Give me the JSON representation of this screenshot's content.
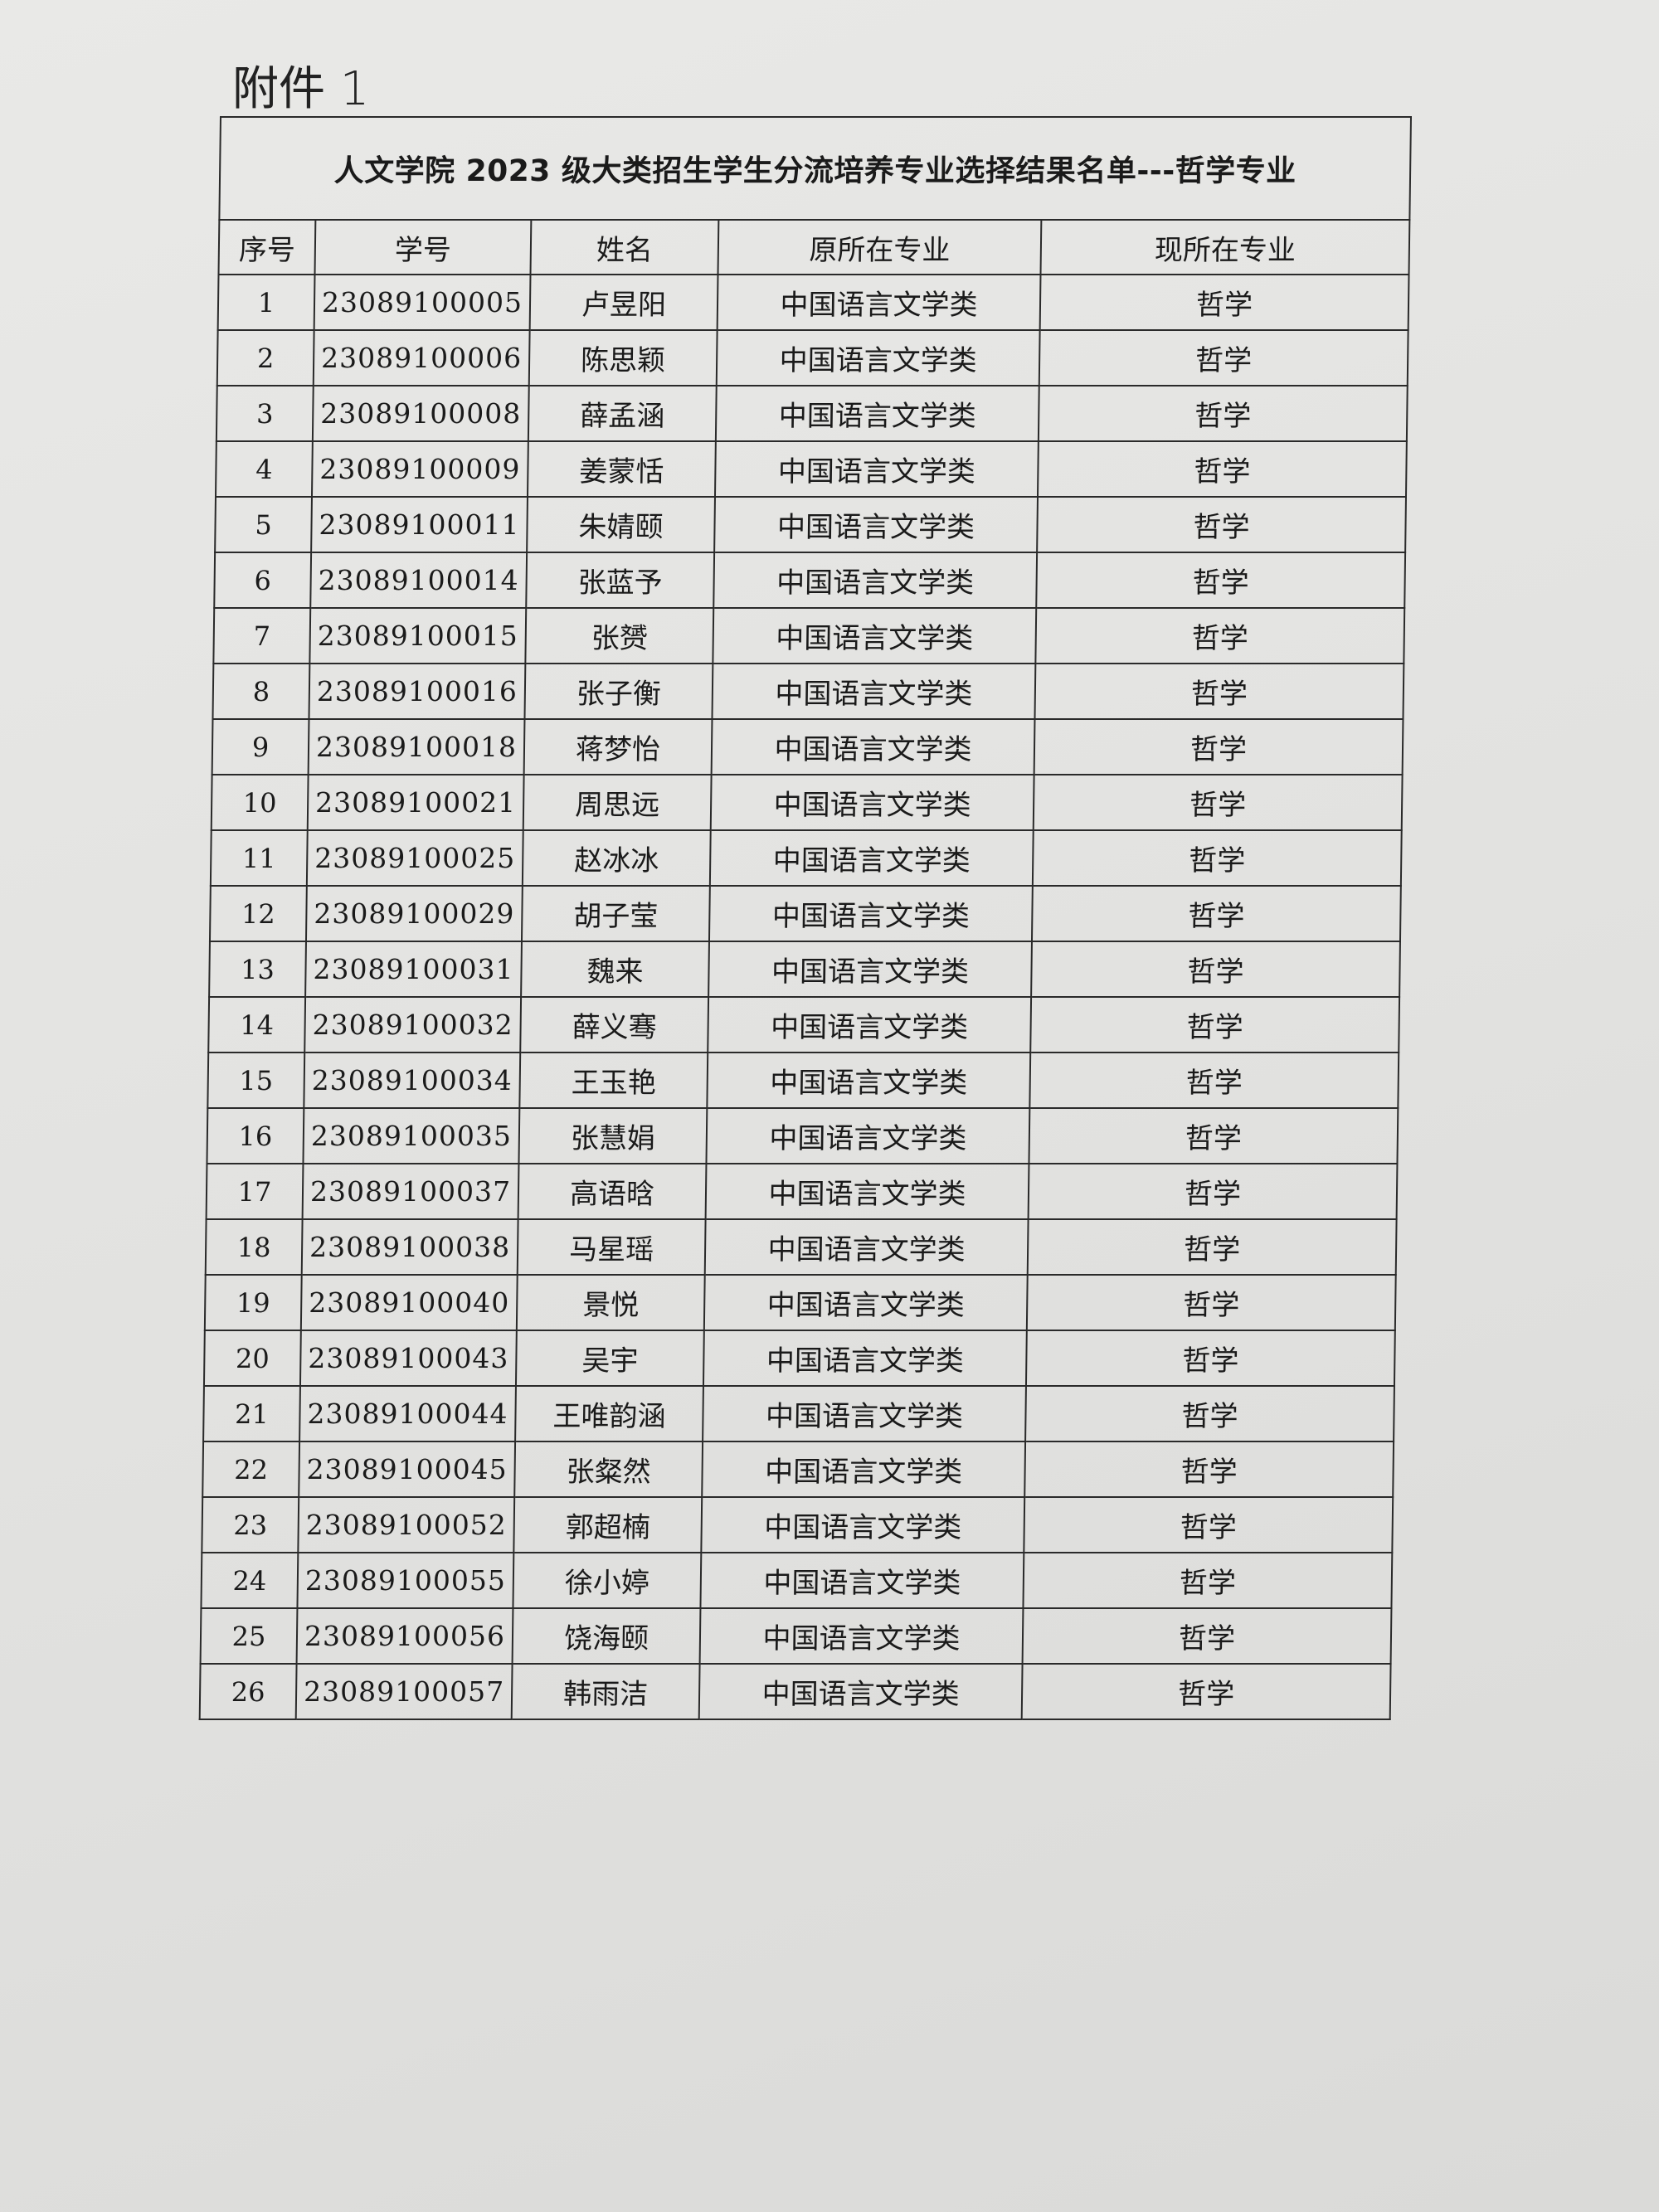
{
  "attachment_label": "附件 1",
  "table": {
    "title": "人文学院 2023 级大类招生学生分流培养专业选择结果名单---哲学专业",
    "headers": [
      "序号",
      "学号",
      "姓名",
      "原所在专业",
      "现所在专业"
    ],
    "rows": [
      [
        "1",
        "23089100005",
        "卢昱阳",
        "中国语言文学类",
        "哲学"
      ],
      [
        "2",
        "23089100006",
        "陈思颖",
        "中国语言文学类",
        "哲学"
      ],
      [
        "3",
        "23089100008",
        "薛孟涵",
        "中国语言文学类",
        "哲学"
      ],
      [
        "4",
        "23089100009",
        "姜蒙恬",
        "中国语言文学类",
        "哲学"
      ],
      [
        "5",
        "23089100011",
        "朱婧颐",
        "中国语言文学类",
        "哲学"
      ],
      [
        "6",
        "23089100014",
        "张蓝予",
        "中国语言文学类",
        "哲学"
      ],
      [
        "7",
        "23089100015",
        "张赟",
        "中国语言文学类",
        "哲学"
      ],
      [
        "8",
        "23089100016",
        "张子衡",
        "中国语言文学类",
        "哲学"
      ],
      [
        "9",
        "23089100018",
        "蒋梦怡",
        "中国语言文学类",
        "哲学"
      ],
      [
        "10",
        "23089100021",
        "周思远",
        "中国语言文学类",
        "哲学"
      ],
      [
        "11",
        "23089100025",
        "赵冰冰",
        "中国语言文学类",
        "哲学"
      ],
      [
        "12",
        "23089100029",
        "胡子莹",
        "中国语言文学类",
        "哲学"
      ],
      [
        "13",
        "23089100031",
        "魏来",
        "中国语言文学类",
        "哲学"
      ],
      [
        "14",
        "23089100032",
        "薛义骞",
        "中国语言文学类",
        "哲学"
      ],
      [
        "15",
        "23089100034",
        "王玉艳",
        "中国语言文学类",
        "哲学"
      ],
      [
        "16",
        "23089100035",
        "张慧娟",
        "中国语言文学类",
        "哲学"
      ],
      [
        "17",
        "23089100037",
        "高语晗",
        "中国语言文学类",
        "哲学"
      ],
      [
        "18",
        "23089100038",
        "马星瑶",
        "中国语言文学类",
        "哲学"
      ],
      [
        "19",
        "23089100040",
        "景悦",
        "中国语言文学类",
        "哲学"
      ],
      [
        "20",
        "23089100043",
        "吴宇",
        "中国语言文学类",
        "哲学"
      ],
      [
        "21",
        "23089100044",
        "王唯韵涵",
        "中国语言文学类",
        "哲学"
      ],
      [
        "22",
        "23089100045",
        "张粲然",
        "中国语言文学类",
        "哲学"
      ],
      [
        "23",
        "23089100052",
        "郭超楠",
        "中国语言文学类",
        "哲学"
      ],
      [
        "24",
        "23089100055",
        "徐小婷",
        "中国语言文学类",
        "哲学"
      ],
      [
        "25",
        "23089100056",
        "饶海颐",
        "中国语言文学类",
        "哲学"
      ],
      [
        "26",
        "23089100057",
        "韩雨洁",
        "中国语言文学类",
        "哲学"
      ]
    ]
  }
}
